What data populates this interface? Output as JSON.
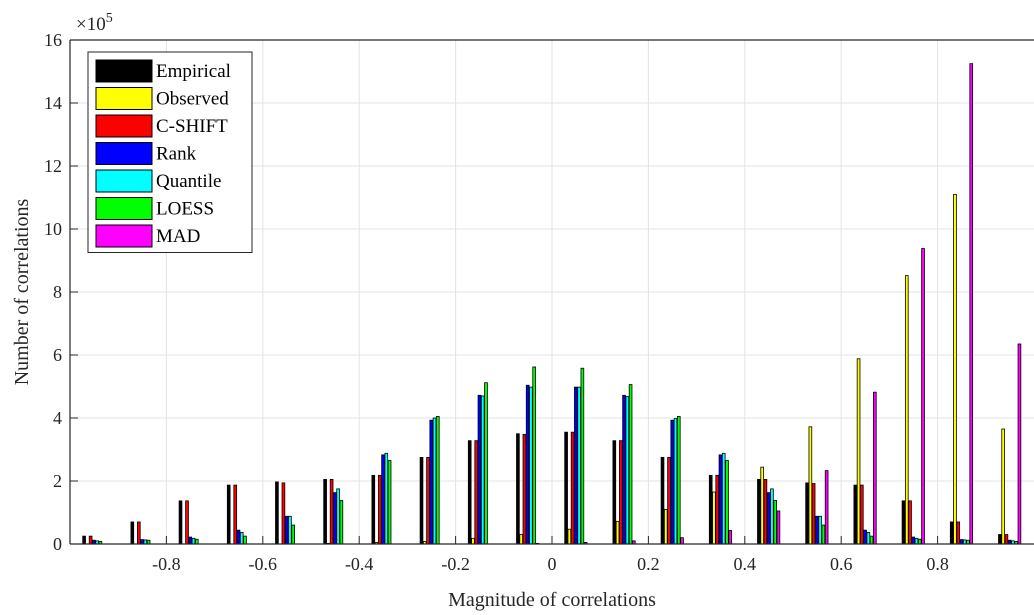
{
  "chart_data": {
    "type": "bar",
    "xlabel": "Magnitude of correlations",
    "ylabel": "Number of correlations",
    "y_multiplier_base": "×10",
    "y_multiplier_exp": "5",
    "xlim": [
      -1,
      1
    ],
    "ylim": [
      0,
      16
    ],
    "xticks": [
      "-0.8",
      "-0.6",
      "-0.4",
      "-0.2",
      "0",
      "0.2",
      "0.4",
      "0.6",
      "0.8"
    ],
    "xtick_values": [
      -0.8,
      -0.6,
      -0.4,
      -0.2,
      0,
      0.2,
      0.4,
      0.6,
      0.8
    ],
    "yticks": [
      "0",
      "2",
      "4",
      "6",
      "8",
      "10",
      "12",
      "14",
      "16"
    ],
    "ytick_values": [
      0,
      2,
      4,
      6,
      8,
      10,
      12,
      14,
      16
    ],
    "grid": true,
    "legend_position": "top-left",
    "bin_centers": [
      -0.95,
      -0.85,
      -0.75,
      -0.65,
      -0.55,
      -0.45,
      -0.35,
      -0.25,
      -0.15,
      -0.05,
      0.05,
      0.15,
      0.25,
      0.35,
      0.45,
      0.55,
      0.65,
      0.75,
      0.85,
      0.95
    ],
    "series": [
      {
        "name": "Empirical",
        "color": "#000000",
        "values": [
          0.25,
          0.7,
          1.37,
          1.87,
          1.97,
          2.05,
          2.18,
          2.75,
          3.28,
          3.5,
          3.55,
          3.28,
          2.75,
          2.18,
          2.05,
          1.94,
          1.87,
          1.37,
          0.7,
          0.3
        ]
      },
      {
        "name": "Observed",
        "color": "#ffff00",
        "values": [
          0,
          0,
          0,
          0,
          0,
          0.02,
          0.05,
          0.08,
          0.18,
          0.3,
          0.47,
          0.72,
          1.1,
          1.65,
          2.44,
          3.72,
          5.88,
          8.52,
          11.1,
          3.65
        ]
      },
      {
        "name": "C-SHIFT",
        "color": "#ff0000",
        "values": [
          0.25,
          0.7,
          1.37,
          1.87,
          1.94,
          2.05,
          2.18,
          2.75,
          3.28,
          3.48,
          3.55,
          3.28,
          2.75,
          2.18,
          2.05,
          1.92,
          1.87,
          1.37,
          0.7,
          0.3
        ]
      },
      {
        "name": "Rank",
        "color": "#0000ff",
        "values": [
          0.12,
          0.14,
          0.22,
          0.44,
          0.88,
          1.63,
          2.83,
          3.93,
          4.72,
          5.04,
          4.98,
          4.72,
          3.93,
          2.83,
          1.63,
          0.88,
          0.44,
          0.22,
          0.14,
          0.12
        ]
      },
      {
        "name": "Quantile",
        "color": "#00ffff",
        "values": [
          0.1,
          0.13,
          0.18,
          0.37,
          0.88,
          1.75,
          2.88,
          4.0,
          4.7,
          4.98,
          4.98,
          4.68,
          3.98,
          2.88,
          1.75,
          0.88,
          0.37,
          0.18,
          0.13,
          0.1
        ]
      },
      {
        "name": "LOESS",
        "color": "#00ff00",
        "values": [
          0.08,
          0.12,
          0.15,
          0.25,
          0.6,
          1.38,
          2.65,
          4.05,
          5.12,
          5.62,
          5.58,
          5.06,
          4.05,
          2.65,
          1.38,
          0.6,
          0.25,
          0.15,
          0.12,
          0.08
        ]
      },
      {
        "name": "MAD",
        "color": "#ff00ff",
        "values": [
          0,
          0,
          0,
          0,
          0,
          0,
          0,
          0,
          0,
          0.02,
          0.05,
          0.1,
          0.2,
          0.43,
          1.05,
          2.33,
          4.82,
          9.38,
          15.25,
          6.35
        ]
      }
    ]
  }
}
